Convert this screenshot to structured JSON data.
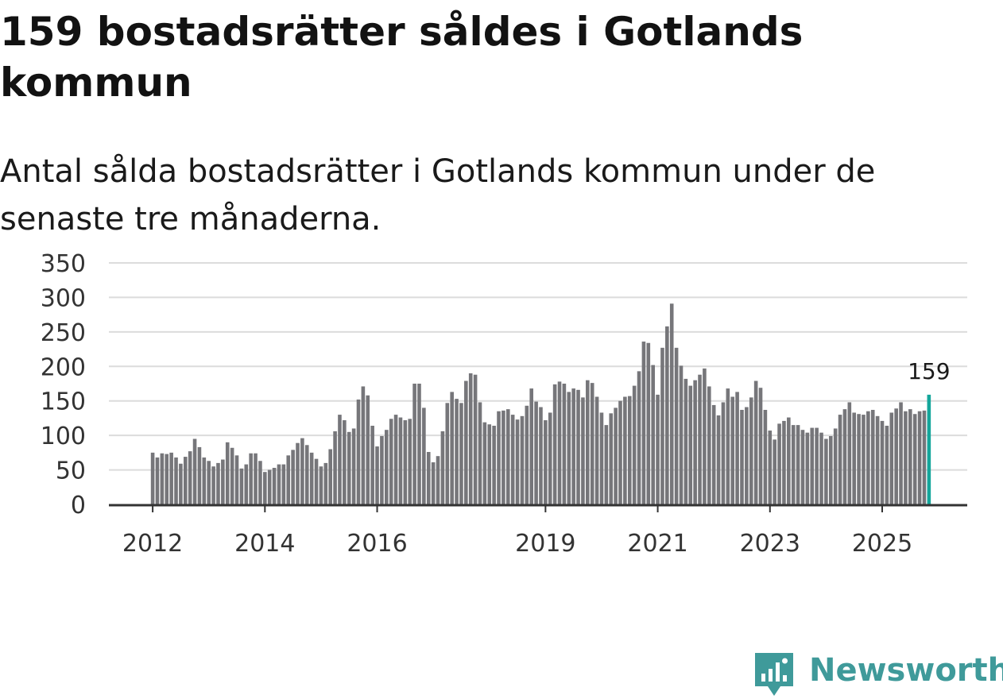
{
  "header": {
    "title": "159 bostadsrätter såldes i Gotlands kommun",
    "subtitle": "Antal sålda bostadsrätter i Gotlands kommun under de senaste tre månaderna."
  },
  "brand": {
    "name": "Newsworthy",
    "color": "#3f9a9a",
    "icon": "bar-chart-logo-icon"
  },
  "colors": {
    "bar": "#76767a",
    "highlight": "#14a69b",
    "grid": "#dcdcdc",
    "axis": "#333333",
    "text": "#333333"
  },
  "chart_data": {
    "type": "bar",
    "title": "159 bostadsrätter såldes i Gotlands kommun",
    "subtitle": "Antal sålda bostadsrätter i Gotlands kommun under de senaste tre månaderna.",
    "xlabel": "",
    "ylabel": "",
    "ylim": [
      0,
      350
    ],
    "yticks": [
      0,
      50,
      100,
      150,
      200,
      250,
      300,
      350
    ],
    "grid": true,
    "first_month": "2012-01",
    "xticks": [
      {
        "label": "2012",
        "index": 0
      },
      {
        "label": "2014",
        "index": 24
      },
      {
        "label": "2016",
        "index": 48
      },
      {
        "label": "2019",
        "index": 84
      },
      {
        "label": "2021",
        "index": 108
      },
      {
        "label": "2023",
        "index": 132
      },
      {
        "label": "2025",
        "index": 156
      }
    ],
    "highlight_label": "159",
    "values": [
      75,
      68,
      74,
      73,
      75,
      68,
      59,
      69,
      77,
      95,
      83,
      68,
      63,
      55,
      60,
      65,
      90,
      82,
      71,
      52,
      58,
      74,
      74,
      63,
      47,
      50,
      53,
      58,
      58,
      71,
      79,
      89,
      96,
      86,
      75,
      66,
      55,
      60,
      80,
      106,
      130,
      122,
      105,
      110,
      152,
      171,
      158,
      114,
      84,
      99,
      108,
      124,
      130,
      126,
      122,
      124,
      175,
      175,
      140,
      76,
      61,
      70,
      106,
      147,
      163,
      153,
      147,
      179,
      190,
      188,
      148,
      119,
      116,
      114,
      135,
      136,
      138,
      130,
      123,
      128,
      143,
      168,
      149,
      141,
      122,
      133,
      174,
      178,
      175,
      163,
      168,
      166,
      155,
      180,
      176,
      156,
      133,
      115,
      132,
      140,
      150,
      156,
      157,
      172,
      193,
      236,
      234,
      202,
      159,
      227,
      258,
      291,
      227,
      201,
      182,
      172,
      180,
      188,
      197,
      171,
      144,
      129,
      148,
      168,
      156,
      163,
      137,
      141,
      155,
      179,
      169,
      137,
      107,
      94,
      117,
      121,
      126,
      115,
      115,
      108,
      104,
      111,
      111,
      104,
      95,
      99,
      110,
      130,
      138,
      148,
      133,
      131,
      130,
      135,
      137,
      128,
      121,
      114,
      133,
      139,
      148,
      135,
      138,
      131,
      135,
      136,
      159
    ]
  }
}
